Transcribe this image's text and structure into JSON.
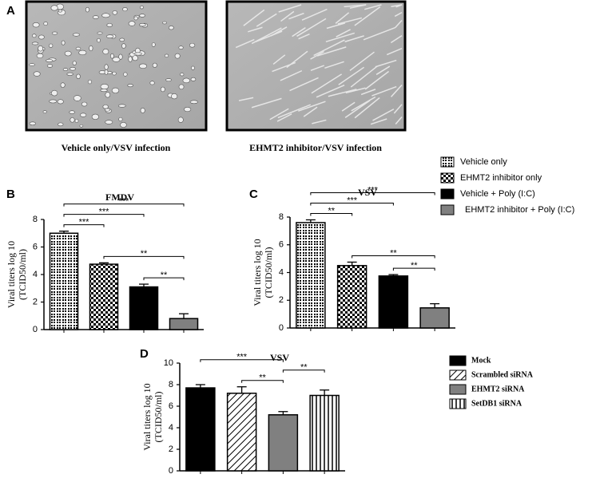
{
  "panel_a": {
    "label": "A",
    "captions": [
      "Vehicle only/VSV infection",
      "EHMT2 inhibitor/VSV infection"
    ]
  },
  "legend_bc": [
    {
      "name": "Vehicle only",
      "fill": "crosses"
    },
    {
      "name": "EHMT2 inhibitor only",
      "fill": "dots"
    },
    {
      "name": "Vehicle + Poly (I:C)",
      "fill": "#000000"
    },
    {
      "name": "EHMT2 inhibitor + Poly (I:C)",
      "fill": "#808080"
    }
  ],
  "chart_data": [
    {
      "type": "bar",
      "panel": "B",
      "title": "FMDV",
      "ylabel": [
        "Viral titers log 10",
        "(TCID50/ml)"
      ],
      "values": [
        7.0,
        4.75,
        3.1,
        0.8
      ],
      "errors": [
        0.15,
        0.1,
        0.2,
        0.35
      ],
      "ylim": [
        0,
        8
      ],
      "yticks": [
        0,
        2,
        4,
        6,
        8
      ],
      "significance": [
        {
          "label": "**",
          "between": [
            2,
            3
          ]
        },
        {
          "label": "**",
          "between": [
            1,
            3
          ]
        },
        {
          "label": "***",
          "between": [
            0,
            1
          ]
        },
        {
          "label": "***",
          "between": [
            0,
            2
          ]
        },
        {
          "label": "***",
          "between": [
            0,
            3
          ]
        }
      ]
    },
    {
      "type": "bar",
      "panel": "C",
      "title": "VSV",
      "ylabel": [
        "Viral titers log 10",
        "(TCID50/ml)"
      ],
      "values": [
        7.6,
        4.5,
        3.75,
        1.45
      ],
      "errors": [
        0.2,
        0.25,
        0.1,
        0.3
      ],
      "ylim": [
        0,
        8
      ],
      "yticks": [
        0,
        2,
        4,
        6,
        8
      ],
      "significance": [
        {
          "label": "**",
          "between": [
            2,
            3
          ]
        },
        {
          "label": "**",
          "between": [
            1,
            3
          ]
        },
        {
          "label": "**",
          "between": [
            0,
            1
          ]
        },
        {
          "label": "***",
          "between": [
            0,
            2
          ]
        },
        {
          "label": "***",
          "between": [
            0,
            3
          ]
        }
      ]
    },
    {
      "type": "bar",
      "panel": "D",
      "title": "VSV",
      "ylabel": [
        "Viral titers log 10",
        "(TCID50/ml)"
      ],
      "values": [
        7.7,
        7.2,
        5.2,
        7.0
      ],
      "errors": [
        0.3,
        0.6,
        0.3,
        0.5
      ],
      "ylim": [
        0,
        10
      ],
      "yticks": [
        0,
        2,
        4,
        6,
        8,
        10
      ],
      "legend": [
        {
          "name": "Mock",
          "fill": "#000000"
        },
        {
          "name": "Scrambled siRNA",
          "fill": "diagonal"
        },
        {
          "name": "EHMT2 siRNA",
          "fill": "#808080"
        },
        {
          "name": "SetDB1 siRNA",
          "fill": "vertical"
        }
      ],
      "significance": [
        {
          "label": "**",
          "between": [
            1,
            2
          ]
        },
        {
          "label": "**",
          "between": [
            2,
            3
          ]
        },
        {
          "label": "***",
          "between": [
            0,
            2
          ]
        }
      ]
    }
  ]
}
